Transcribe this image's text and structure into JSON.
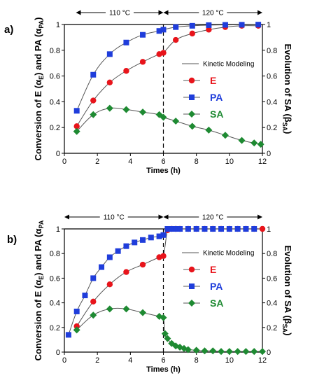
{
  "colors": {
    "E": "#e8141b",
    "PA": "#1f3ddb",
    "SA": "#1e8a32",
    "fit": "#555555",
    "axis": "#000000"
  },
  "legend": {
    "model_label": "Kinetic Modeling",
    "names": [
      "E",
      "PA",
      "SA"
    ]
  },
  "chart_data": [
    {
      "type": "scatter",
      "panel_label": "a)",
      "xlabel": "Times (h)",
      "ylabel_left_parts": [
        "Conversion of E (α",
        "E",
        ") and PA (α",
        "PA",
        ")"
      ],
      "ylabel_right_parts": [
        "Evolution of SA (β",
        "SA",
        ")"
      ],
      "xlim": [
        0,
        12
      ],
      "ylim": [
        0,
        1
      ],
      "xticks": [
        "0",
        "2",
        "4",
        "6",
        "8",
        "10",
        "12"
      ],
      "yticks_left": [
        "0",
        "0.2",
        "0.4",
        "0.6",
        "0.8",
        "1"
      ],
      "yticks_right": [
        "0",
        "0.2",
        "0.4",
        "0.6",
        "0.8",
        "1"
      ],
      "divider_x": 6,
      "temperature_zones": [
        {
          "label": "110 °C",
          "from": 0.7,
          "to": 6
        },
        {
          "label": "120 °C",
          "from": 6,
          "to": 12
        }
      ],
      "series": [
        {
          "name": "E",
          "marker": "circle",
          "points": [
            [
              0.75,
              0.21
            ],
            [
              1.75,
              0.41
            ],
            [
              2.75,
              0.55
            ],
            [
              3.75,
              0.64
            ],
            [
              4.75,
              0.71
            ],
            [
              5.75,
              0.77
            ],
            [
              6.0,
              0.78
            ],
            [
              6.75,
              0.88
            ],
            [
              7.75,
              0.93
            ],
            [
              8.75,
              0.96
            ],
            [
              9.75,
              0.98
            ],
            [
              10.75,
              0.99
            ],
            [
              11.75,
              0.99
            ]
          ]
        },
        {
          "name": "PA",
          "marker": "square",
          "points": [
            [
              0.75,
              0.33
            ],
            [
              1.75,
              0.61
            ],
            [
              2.75,
              0.77
            ],
            [
              3.75,
              0.86
            ],
            [
              4.75,
              0.92
            ],
            [
              5.75,
              0.95
            ],
            [
              6.0,
              0.96
            ],
            [
              6.75,
              0.98
            ],
            [
              7.75,
              0.99
            ],
            [
              8.75,
              0.995
            ],
            [
              9.75,
              0.997
            ],
            [
              10.75,
              0.998
            ],
            [
              11.75,
              0.999
            ]
          ]
        },
        {
          "name": "SA",
          "marker": "diamond",
          "points": [
            [
              0.75,
              0.17
            ],
            [
              1.75,
              0.3
            ],
            [
              2.75,
              0.35
            ],
            [
              3.75,
              0.34
            ],
            [
              4.75,
              0.32
            ],
            [
              5.75,
              0.3
            ],
            [
              6.0,
              0.28
            ],
            [
              6.75,
              0.25
            ],
            [
              7.75,
              0.21
            ],
            [
              8.75,
              0.18
            ],
            [
              9.75,
              0.14
            ],
            [
              10.75,
              0.1
            ],
            [
              11.5,
              0.08
            ],
            [
              11.9,
              0.07
            ]
          ]
        }
      ]
    },
    {
      "type": "scatter",
      "panel_label": "b)",
      "xlabel": "Times (h)",
      "ylabel_left_parts": [
        "Conversion of E (α",
        "E",
        ") and PA (α",
        "PA",
        ""
      ],
      "ylabel_right_parts": [
        "Evolution of SA (β",
        "SA",
        ")"
      ],
      "xlim": [
        0,
        12
      ],
      "ylim": [
        0,
        1
      ],
      "xticks": [
        "0",
        "2",
        "4",
        "6",
        "8",
        "10",
        "12"
      ],
      "yticks_left": [
        "0",
        "0.2",
        "0.4",
        "0.6",
        "0.8",
        "1"
      ],
      "yticks_right": [
        "0",
        "0.2",
        "0.4",
        "0.6",
        "0.8",
        "1"
      ],
      "divider_x": 6,
      "temperature_zones": [
        {
          "label": "110 °C",
          "from": 0,
          "to": 6
        },
        {
          "label": "120 °C",
          "from": 6,
          "to": 12
        }
      ],
      "series": [
        {
          "name": "E",
          "marker": "circle",
          "points": [
            [
              0.75,
              0.21
            ],
            [
              1.75,
              0.41
            ],
            [
              2.75,
              0.55
            ],
            [
              3.75,
              0.65
            ],
            [
              4.75,
              0.71
            ],
            [
              5.75,
              0.77
            ],
            [
              6.0,
              0.78
            ],
            [
              6.25,
              0.99
            ],
            [
              6.5,
              1.0
            ],
            [
              6.75,
              1.0
            ],
            [
              7.0,
              1.0
            ],
            [
              7.5,
              1.0
            ],
            [
              8.0,
              1.0
            ],
            [
              8.5,
              1.0
            ],
            [
              9.0,
              1.0
            ],
            [
              9.5,
              1.0
            ],
            [
              10.0,
              1.0
            ],
            [
              10.5,
              1.0
            ],
            [
              11.0,
              1.0
            ],
            [
              11.5,
              1.0
            ],
            [
              12.0,
              1.0
            ]
          ]
        },
        {
          "name": "PA",
          "marker": "square",
          "points": [
            [
              0.25,
              0.14
            ],
            [
              0.75,
              0.33
            ],
            [
              1.25,
              0.46
            ],
            [
              1.75,
              0.6
            ],
            [
              2.25,
              0.69
            ],
            [
              2.75,
              0.77
            ],
            [
              3.25,
              0.82
            ],
            [
              3.75,
              0.86
            ],
            [
              4.25,
              0.89
            ],
            [
              4.75,
              0.91
            ],
            [
              5.25,
              0.93
            ],
            [
              5.75,
              0.94
            ],
            [
              6.0,
              0.95
            ],
            [
              6.25,
              1.0
            ],
            [
              6.5,
              1.0
            ],
            [
              6.75,
              1.0
            ],
            [
              7.0,
              1.0
            ],
            [
              7.5,
              1.0
            ],
            [
              8.0,
              1.0
            ],
            [
              8.5,
              1.0
            ],
            [
              9.0,
              1.0
            ],
            [
              9.5,
              1.0
            ],
            [
              10.0,
              1.0
            ],
            [
              10.5,
              1.0
            ],
            [
              11.0,
              1.0
            ],
            [
              11.5,
              1.0
            ]
          ]
        },
        {
          "name": "SA",
          "marker": "diamond",
          "points": [
            [
              0.75,
              0.18
            ],
            [
              1.75,
              0.3
            ],
            [
              2.75,
              0.35
            ],
            [
              3.75,
              0.35
            ],
            [
              4.75,
              0.32
            ],
            [
              5.75,
              0.29
            ],
            [
              6.0,
              0.28
            ],
            [
              6.1,
              0.15
            ],
            [
              6.25,
              0.11
            ],
            [
              6.5,
              0.07
            ],
            [
              6.75,
              0.05
            ],
            [
              7.0,
              0.04
            ],
            [
              7.25,
              0.03
            ],
            [
              7.5,
              0.02
            ],
            [
              8.0,
              0.015
            ],
            [
              8.5,
              0.01
            ],
            [
              9.0,
              0.01
            ],
            [
              9.5,
              0.005
            ],
            [
              10.0,
              0.005
            ],
            [
              10.5,
              0.005
            ],
            [
              11.0,
              0.005
            ],
            [
              11.5,
              0.005
            ],
            [
              12.0,
              0.005
            ]
          ]
        }
      ]
    }
  ]
}
